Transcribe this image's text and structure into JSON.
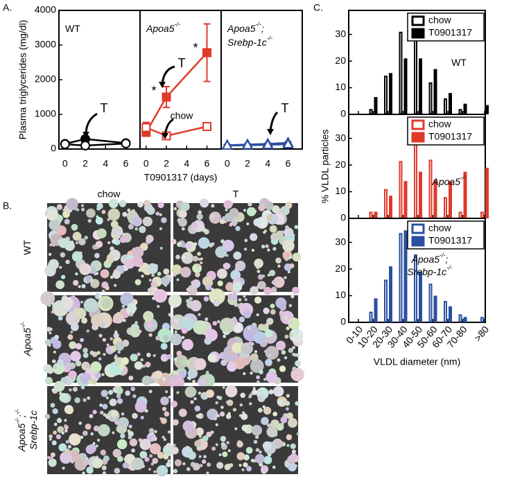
{
  "panels": {
    "a": "A.",
    "b": "B.",
    "c": "C."
  },
  "micrographs": {
    "columns": [
      "chow",
      "T"
    ],
    "rows": [
      [
        [
          {
            "text": "WT"
          }
        ]
      ],
      [
        [
          {
            "text": "Apoa5"
          },
          {
            "sup": "-/-"
          }
        ]
      ],
      [
        [
          {
            "text": "Apoa5"
          },
          {
            "sup": "-/-"
          },
          {
            "text": ";"
          },
          {
            "sup": "-/-"
          }
        ],
        [
          {
            "text": "Srebp-1c"
          }
        ]
      ]
    ]
  },
  "chart_data": [
    {
      "type": "line",
      "title": [
        [
          {
            "text": "WT"
          }
        ]
      ],
      "ylabel": "Plasma triglycerides (mg/dl)",
      "xlim": [
        -0.6,
        7.4
      ],
      "ylim": [
        0,
        4000
      ],
      "xticks": [
        0,
        2,
        4,
        6
      ],
      "yticks": [
        0,
        1000,
        2000,
        3000,
        4000
      ],
      "series": [
        {
          "color": "#000000",
          "marker": "circle",
          "filled": true,
          "x": [
            0,
            2,
            6
          ],
          "values": [
            150,
            290,
            170
          ],
          "errors": [
            40,
            70,
            40
          ]
        },
        {
          "color": "#000000",
          "marker": "circle",
          "filled": false,
          "x": [
            0,
            2,
            6
          ],
          "values": [
            140,
            100,
            160
          ],
          "errors": [
            30,
            30,
            30
          ]
        }
      ],
      "annotations": [
        "T"
      ]
    },
    {
      "type": "line",
      "title": [
        [
          {
            "text": "Apoa5"
          },
          {
            "sup": "-/-"
          }
        ]
      ],
      "xlabel": "T0901317 (days)",
      "xlim": [
        -0.6,
        7.4
      ],
      "ylim": [
        0,
        4000
      ],
      "xticks": [
        0,
        2,
        4,
        6
      ],
      "series": [
        {
          "color": "#e03a2a",
          "marker": "square",
          "filled": true,
          "x": [
            0,
            2,
            6
          ],
          "values": [
            480,
            1500,
            2780
          ],
          "errors": [
            100,
            300,
            830
          ]
        },
        {
          "color": "#e03a2a",
          "marker": "square",
          "filled": false,
          "x": [
            0,
            2,
            6
          ],
          "values": [
            620,
            380,
            650
          ],
          "errors": [
            150,
            80,
            60
          ]
        }
      ],
      "annotations": [
        "*",
        "*",
        "T",
        "chow"
      ]
    },
    {
      "type": "line",
      "title": [
        [
          {
            "text": "Apoa5"
          },
          {
            "sup": "-/-"
          },
          {
            "text": ";"
          }
        ],
        [
          {
            "text": "Srebp-1c"
          },
          {
            "sup": "-/-"
          }
        ]
      ],
      "xlim": [
        -0.6,
        7.4
      ],
      "ylim": [
        0,
        4000
      ],
      "xticks": [
        0,
        2,
        4,
        6
      ],
      "series": [
        {
          "color": "#2a4fa0",
          "marker": "triangle",
          "filled": true,
          "x": [
            0,
            2,
            4,
            6
          ],
          "values": [
            110,
            130,
            150,
            180
          ],
          "errors": [
            20,
            20,
            20,
            30
          ]
        },
        {
          "color": "#2a4fa0",
          "marker": "triangle",
          "filled": false,
          "x": [
            0,
            2,
            4,
            6
          ],
          "values": [
            100,
            110,
            120,
            140
          ],
          "errors": [
            20,
            20,
            20,
            20
          ]
        }
      ],
      "annotations": [
        "T"
      ]
    },
    {
      "type": "bar",
      "ylim": [
        0,
        39
      ],
      "yticks": [
        0,
        10,
        20,
        30
      ],
      "legend": "upper right",
      "categories": [
        "0-10",
        "10-20",
        "20-30",
        "30-40",
        "40-50",
        "50-60",
        "60-70",
        "70-80",
        ">80"
      ],
      "series": [
        {
          "name": "chow",
          "color": "#000000",
          "filled": false,
          "values": [
            0,
            2,
            14.5,
            31,
            28,
            12,
            6,
            2,
            0.5
          ]
        },
        {
          "name": "T0901317",
          "color": "#000000",
          "filled": true,
          "values": [
            0,
            6.5,
            15.5,
            21,
            21,
            17,
            8,
            4,
            3.5
          ]
        }
      ],
      "label": [
        [
          {
            "text": "WT"
          }
        ]
      ]
    },
    {
      "type": "bar",
      "ylim": [
        0,
        39
      ],
      "yticks": [
        0,
        10,
        20,
        30
      ],
      "legend": "upper right",
      "ylabel": "% VLDL particles",
      "categories": [
        "0-10",
        "10-20",
        "20-30",
        "30-40",
        "40-50",
        "50-60",
        "60-70",
        "70-80",
        ">80"
      ],
      "series": [
        {
          "name": "chow",
          "color": "#e03a2a",
          "filled": false,
          "values": [
            0,
            2.5,
            11,
            21.5,
            30,
            22,
            8,
            2.5,
            2.5
          ]
        },
        {
          "name": "T0901317",
          "color": "#e03a2a",
          "filled": true,
          "values": [
            0,
            2.5,
            8.5,
            14,
            17.5,
            14.5,
            14,
            17.5,
            19
          ]
        }
      ],
      "label": [
        [
          {
            "text": "Apoa5"
          },
          {
            "sup": "-/-"
          }
        ]
      ]
    },
    {
      "type": "bar",
      "ylim": [
        0,
        39
      ],
      "yticks": [
        0,
        10,
        20,
        30
      ],
      "legend": "upper right",
      "xlabel": "VLDL diameter (nm)",
      "categories": [
        "0-10",
        "10-20",
        "20-30",
        "30-40",
        "40-50",
        "50-60",
        "60-70",
        "70-80",
        ">80"
      ],
      "series": [
        {
          "name": "chow",
          "color": "#2a4fa0",
          "filled": false,
          "values": [
            0,
            4,
            16,
            33.5,
            25.5,
            14.5,
            8,
            3,
            2
          ]
        },
        {
          "name": "T0901317",
          "color": "#2a4fa0",
          "filled": true,
          "values": [
            0,
            9,
            21,
            34.5,
            19,
            10,
            6,
            2,
            0
          ]
        }
      ],
      "label": [
        [
          {
            "text": "Apoa5"
          },
          {
            "sup": "-/-"
          },
          {
            "text": ";"
          }
        ],
        [
          {
            "text": "Srebp-1c"
          },
          {
            "sup": "-/-"
          }
        ]
      ]
    }
  ]
}
